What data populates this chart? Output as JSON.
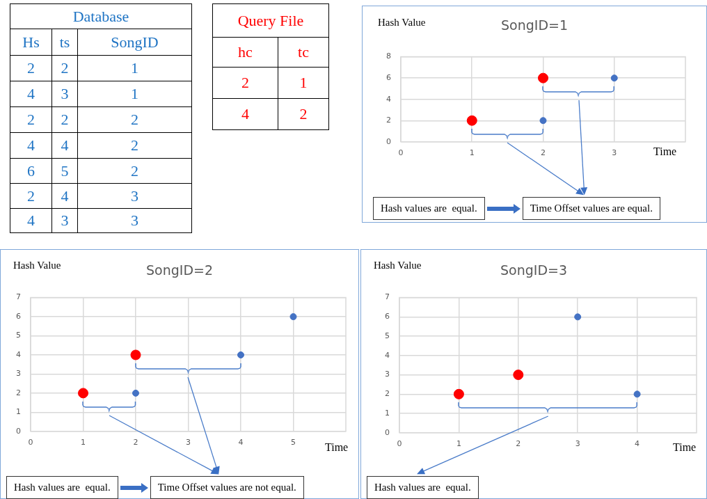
{
  "chart_data": [
    {
      "type": "other",
      "title": "Database",
      "color": "#1f74c4",
      "categories": [
        "Hs",
        "ts",
        "SongID"
      ],
      "annotations": [
        "2",
        "2",
        "1",
        "4",
        "3",
        "1",
        "2",
        "2",
        "2",
        "4",
        "4",
        "2",
        "6",
        "5",
        "2",
        "2",
        "4",
        "3",
        "4",
        "3",
        "3"
      ]
    },
    {
      "type": "other",
      "title": "Query File",
      "color": "#ff0000",
      "categories": [
        "hc",
        "tc"
      ],
      "annotations": [
        "2",
        "1",
        "4",
        "2"
      ]
    },
    {
      "type": "scatter",
      "title": "SongID=1",
      "xlabel": "Time",
      "ylabel": "Hash Value",
      "xlim": [
        0,
        4
      ],
      "xticks": [
        0,
        1,
        2,
        3
      ],
      "ylim": [
        0,
        8
      ],
      "yticks": [
        0,
        2,
        4,
        6,
        8
      ],
      "grid": true,
      "legend": false,
      "marker": "circle",
      "series": [
        {
          "color": "#ff0000",
          "x": [
            1,
            2
          ],
          "values": [
            2,
            6
          ]
        },
        {
          "color": "#4472c4",
          "x": [
            2,
            3
          ],
          "values": [
            2,
            6
          ]
        }
      ],
      "annotations": [
        "Hash values are  equal.",
        "Time Offset values are equal."
      ]
    },
    {
      "type": "scatter",
      "title": "SongID=2",
      "xlabel": "Time",
      "ylabel": "Hash Value",
      "xlim": [
        0,
        6
      ],
      "xticks": [
        0,
        1,
        2,
        3,
        4,
        5
      ],
      "ylim": [
        0,
        7
      ],
      "yticks": [
        0,
        1,
        2,
        3,
        4,
        5,
        6,
        7
      ],
      "grid": true,
      "legend": false,
      "marker": "circle",
      "series": [
        {
          "color": "#ff0000",
          "x": [
            1,
            2
          ],
          "values": [
            2,
            4
          ]
        },
        {
          "color": "#4472c4",
          "x": [
            2,
            4,
            5
          ],
          "values": [
            2,
            4,
            6
          ]
        }
      ],
      "annotations": [
        "Hash values are  equal.",
        "Time Offset values are not equal."
      ]
    },
    {
      "type": "scatter",
      "title": "SongID=3",
      "xlabel": "Time",
      "ylabel": "Hash Value",
      "xlim": [
        0,
        5
      ],
      "xticks": [
        0,
        1,
        2,
        3,
        4
      ],
      "ylim": [
        0,
        7
      ],
      "yticks": [
        0,
        1,
        2,
        3,
        4,
        5,
        6,
        7
      ],
      "grid": true,
      "legend": false,
      "marker": "circle",
      "series": [
        {
          "color": "#ff0000",
          "x": [
            1,
            2
          ],
          "values": [
            2,
            3
          ]
        },
        {
          "color": "#4472c4",
          "x": [
            3,
            4
          ],
          "values": [
            6,
            2
          ]
        }
      ],
      "annotations": [
        "Hash values are  equal."
      ]
    }
  ]
}
